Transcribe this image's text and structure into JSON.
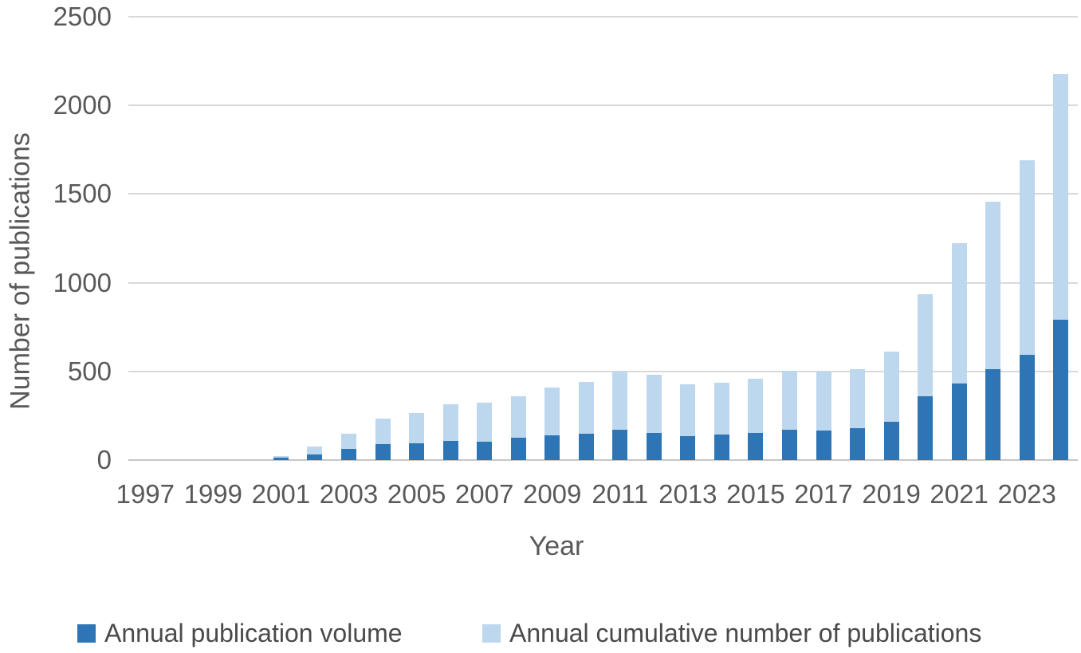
{
  "chart_data": {
    "type": "bar",
    "stacked": true,
    "title": "",
    "xlabel": "Year",
    "ylabel": "Number of publications",
    "ylim": [
      0,
      2500
    ],
    "yticks": [
      0,
      500,
      1000,
      1500,
      2000,
      2500
    ],
    "grid": "horizontal",
    "legend_position": "bottom",
    "categories": [
      "1997",
      "1998",
      "1999",
      "2000",
      "2001",
      "2002",
      "2003",
      "2004",
      "2005",
      "2006",
      "2007",
      "2008",
      "2009",
      "2010",
      "2011",
      "2012",
      "2013",
      "2014",
      "2015",
      "2016",
      "2017",
      "2018",
      "2019",
      "2020",
      "2021",
      "2022",
      "2023",
      "2024"
    ],
    "xtick_labels": [
      "1997",
      "1999",
      "2001",
      "2003",
      "2005",
      "2007",
      "2009",
      "2011",
      "2013",
      "2015",
      "2017",
      "2019",
      "2021",
      "2023"
    ],
    "series": [
      {
        "name": "Annual publication volume",
        "color": "#2e75b6",
        "role": "lower dark segment of each stacked bar",
        "values": [
          0,
          0,
          0,
          0,
          15,
          30,
          65,
          90,
          95,
          110,
          105,
          125,
          140,
          150,
          170,
          155,
          135,
          145,
          155,
          172,
          165,
          180,
          218,
          358,
          430,
          515,
          592,
          790
        ]
      },
      {
        "name": "Annual cumulative number of publications",
        "color": "#bdd7ee",
        "role": "upper light segment; value equals total bar height, segment spans from annual value to this value",
        "values": [
          0,
          0,
          0,
          0,
          22,
          76,
          150,
          235,
          265,
          315,
          325,
          360,
          410,
          440,
          500,
          483,
          428,
          436,
          460,
          502,
          499,
          512,
          610,
          935,
          1225,
          1455,
          1690,
          2175
        ]
      }
    ]
  },
  "legend": {
    "items": [
      {
        "label": "Annual publication volume",
        "color": "#2e75b6"
      },
      {
        "label": "Annual cumulative number of publications",
        "color": "#bdd7ee"
      }
    ]
  },
  "colors": {
    "gridline": "#d9d9d9",
    "axis_line": "#c6c6c6",
    "tick_text": "#595959",
    "title_text": "#595959",
    "legend_text": "#4a4a4a",
    "background": "#ffffff"
  }
}
